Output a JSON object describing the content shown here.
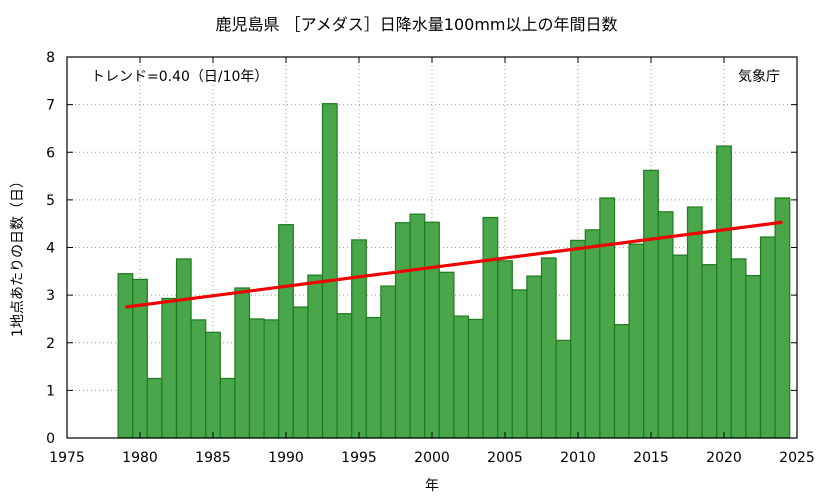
{
  "chart_data": {
    "type": "bar",
    "title": "鹿児島県 ［アメダス］日降水量100mm以上の年間日数",
    "xlabel": "年",
    "ylabel": "1地点あたりの日数（日）",
    "annotation_trend": "トレンド=0.40（日/10年）",
    "credit": "気象庁",
    "xlim": [
      1975,
      2025
    ],
    "ylim": [
      0,
      8
    ],
    "x_ticks": [
      1975,
      1980,
      1985,
      1990,
      1995,
      2000,
      2005,
      2010,
      2015,
      2020,
      2025
    ],
    "y_ticks": [
      0,
      1,
      2,
      3,
      4,
      5,
      6,
      7,
      8
    ],
    "grid": true,
    "x": [
      1979,
      1980,
      1981,
      1982,
      1983,
      1984,
      1985,
      1986,
      1987,
      1988,
      1989,
      1990,
      1991,
      1992,
      1993,
      1994,
      1995,
      1996,
      1997,
      1998,
      1999,
      2000,
      2001,
      2002,
      2003,
      2004,
      2005,
      2006,
      2007,
      2008,
      2009,
      2010,
      2011,
      2012,
      2013,
      2014,
      2015,
      2016,
      2017,
      2018,
      2019,
      2020,
      2021,
      2022,
      2023,
      2024
    ],
    "values": [
      3.45,
      3.33,
      1.25,
      2.93,
      3.76,
      2.48,
      2.22,
      1.25,
      3.15,
      2.5,
      2.48,
      4.48,
      2.75,
      3.42,
      7.02,
      2.61,
      4.16,
      2.53,
      3.19,
      4.52,
      4.7,
      4.53,
      3.48,
      2.56,
      2.49,
      4.63,
      3.72,
      3.11,
      3.4,
      3.78,
      2.05,
      4.15,
      4.37,
      5.04,
      2.38,
      4.07,
      5.62,
      4.75,
      3.84,
      4.85,
      3.64,
      6.13,
      3.76,
      3.41,
      4.22,
      5.04
    ],
    "trend": {
      "x": [
        1979,
        2024
      ],
      "y": [
        2.75,
        4.53
      ]
    },
    "colors": {
      "bar_fill": "#4aa64a",
      "bar_stroke": "#1e7a1e",
      "trend": "#ee0000",
      "grid": "#9a9a9a"
    }
  }
}
